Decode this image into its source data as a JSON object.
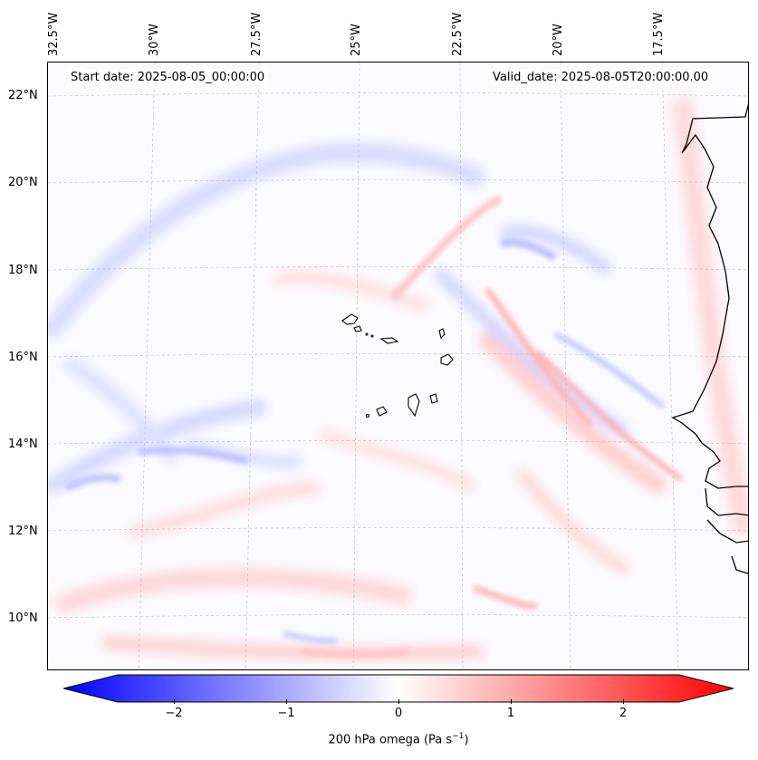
{
  "header": {
    "start_date": "Start date: 2025-08-05_00:00:00",
    "valid_date": "Valid_date: 2025-08-05T20:00:00.00"
  },
  "map": {
    "lon_labels": [
      "32.5°W",
      "30°W",
      "27.5°W",
      "25°W",
      "22.5°W",
      "20°W",
      "17.5°W"
    ],
    "lat_labels": [
      "22°N",
      "20°N",
      "18°N",
      "16°N",
      "14°N",
      "12°N",
      "10°N"
    ],
    "colors": {
      "land_outline": "#000000",
      "gridline": "#bbbbbb",
      "background": "#fbfbff"
    }
  },
  "colorbar": {
    "ticks": [
      "−2",
      "−1",
      "0",
      "1",
      "2"
    ],
    "tick_values": [
      -2,
      -1,
      0,
      1,
      2
    ],
    "range": [
      -2.5,
      2.5
    ],
    "label_text": "200 hPa omega (Pa s",
    "label_sup": "−1",
    "label_close": ")",
    "colors": {
      "min": "#0000ff",
      "mid": "#ffffff",
      "max": "#ff0000"
    }
  }
}
